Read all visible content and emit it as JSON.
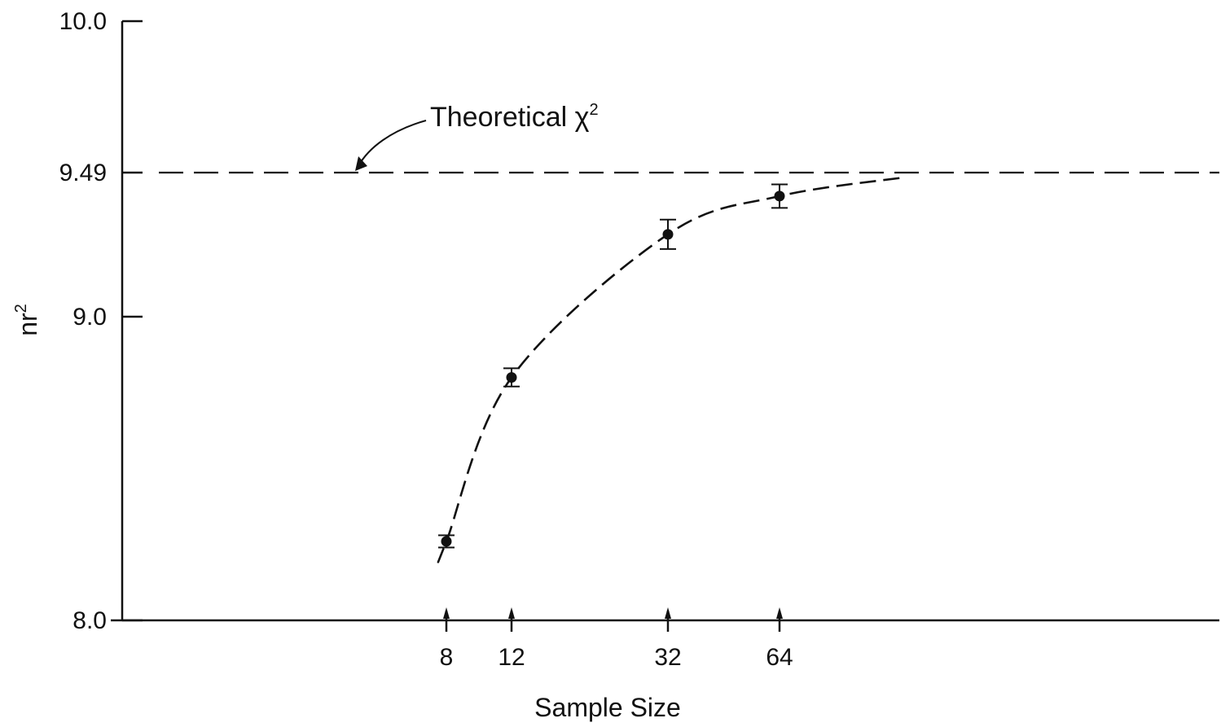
{
  "chart_data": {
    "type": "scatter",
    "title": "",
    "xlabel": "Sample Size",
    "ylabel": "nr",
    "ylabel_superscript": "2",
    "x_ticks": [
      {
        "value": 8,
        "label": "8"
      },
      {
        "value": 12,
        "label": "12"
      },
      {
        "value": 32,
        "label": "32"
      },
      {
        "value": 64,
        "label": "64"
      }
    ],
    "y_ticks": [
      {
        "value": 8.0,
        "label": "8.0"
      },
      {
        "value": 9.0,
        "label": "9.0"
      },
      {
        "value": 9.49,
        "label": "9.49"
      },
      {
        "value": 10.0,
        "label": "10.0"
      }
    ],
    "ylim": [
      8.0,
      10.0
    ],
    "grid": false,
    "reference_line": {
      "y": 9.49,
      "style": "dashed"
    },
    "annotation": {
      "text": "Theoretical χ",
      "superscript": "2",
      "points_to": {
        "y": 9.49
      }
    },
    "series": [
      {
        "points": [
          {
            "x": 8,
            "y": 8.26,
            "err_low": 0.02,
            "err_high": 0.02
          },
          {
            "x": 12,
            "y": 8.8,
            "err_low": 0.03,
            "err_high": 0.03
          },
          {
            "x": 32,
            "y": 9.28,
            "err_low": 0.05,
            "err_high": 0.05
          },
          {
            "x": 64,
            "y": 9.41,
            "err_low": 0.04,
            "err_high": 0.04
          }
        ],
        "fit_curve": {
          "style": "dashed",
          "x_range": [
            7.5,
            100
          ]
        }
      }
    ]
  }
}
